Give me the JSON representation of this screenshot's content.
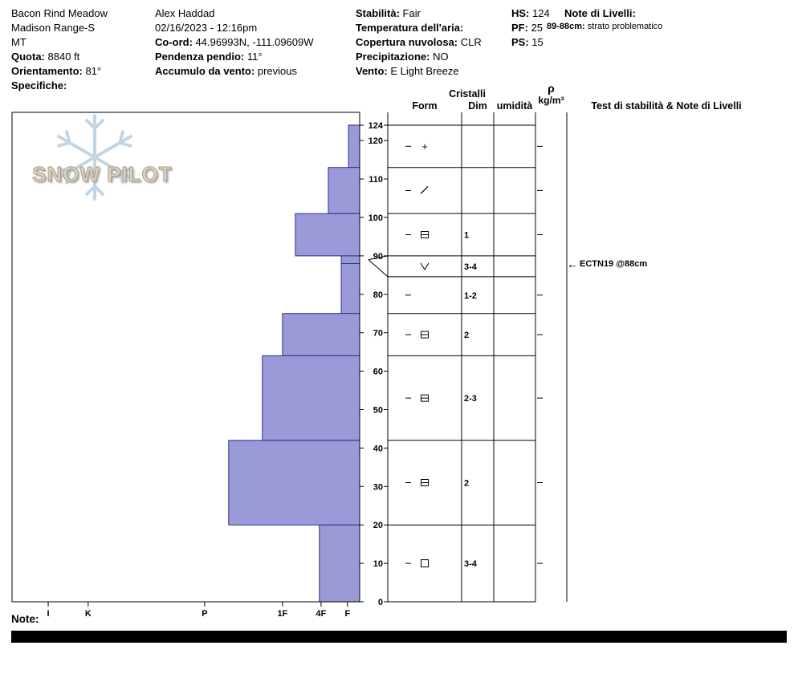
{
  "title": "SnowPilot snow profile",
  "header": {
    "columns": [
      {
        "name": "location",
        "lines": [
          {
            "b": "",
            "t": "Bacon Rind Meadow"
          },
          {
            "b": "",
            "t": "Madison Range-S"
          },
          {
            "b": "",
            "t": "MT"
          },
          {
            "b": "Quota:",
            "t": " 8840 ft"
          },
          {
            "b": "Orientamento:",
            "t": " 81°"
          },
          {
            "b": "Specifiche:",
            "t": ""
          }
        ]
      },
      {
        "name": "observer",
        "lines": [
          {
            "b": "",
            "t": "Alex Haddad"
          },
          {
            "b": "",
            "t": "02/16/2023 - 12:16pm"
          },
          {
            "b": "Co-ord:",
            "t": " 44.96993N, -111.09609W"
          },
          {
            "b": "Pendenza pendio:",
            "t": " 11°"
          },
          {
            "b": "Accumulo da vento:",
            "t": " previous"
          }
        ]
      },
      {
        "name": "conditions",
        "lines": [
          {
            "b": "Stabilità:",
            "t": " Fair"
          },
          {
            "b": "Temperatura dell'aria:",
            "t": ""
          },
          {
            "b": "Copertura nuvolosa:",
            "t": " CLR"
          },
          {
            "b": "Precipitazione:",
            "t": " NO"
          },
          {
            "b": "Vento:",
            "t": " E Light Breeze"
          }
        ]
      },
      {
        "name": "totals",
        "lines": [
          {
            "b": "HS:",
            "t": " 124"
          },
          {
            "b": "PF:",
            "t": " 25"
          },
          {
            "b": "PS:",
            "t": " 15"
          }
        ]
      }
    ],
    "notes_title": "Note di Livelli:",
    "note_line": {
      "b": "89-88cm:",
      "t": " strato problematico"
    }
  },
  "logo": {
    "text": "SNOW PILOT"
  },
  "table": {
    "group_header": "Cristalli",
    "columns": {
      "form": "Form",
      "dim": "Dim",
      "humidity": "umidità",
      "rho": "ρ",
      "rho_units": "kg/m³",
      "tests": "Test di stabilità & Note di Livelli"
    }
  },
  "stability_annotation": {
    "arrow": "←",
    "text": "ECTN19 @88cm"
  },
  "footer": {
    "note_label": "Note:"
  },
  "chart_data": {
    "type": "snow-profile",
    "total_depth_hs_cm": 124,
    "depth_ticks": [
      0,
      10,
      20,
      30,
      40,
      50,
      60,
      70,
      80,
      90,
      100,
      110,
      120,
      124
    ],
    "hardness_axis": {
      "labels": [
        "I",
        "K",
        "P",
        "1F",
        "4F",
        "F"
      ],
      "fractions": [
        0.104,
        0.219,
        0.554,
        0.778,
        0.889,
        0.965
      ]
    },
    "bar_fill": "#9a9ad8",
    "bar_stroke": "#2e2e8e",
    "layers": [
      {
        "top_cm": 124,
        "bottom_cm": 113,
        "hardness": "F",
        "hardness_frac": 0.968,
        "grain_form": "precipitation-particles",
        "symbol": "plus",
        "grain_size_mm": ""
      },
      {
        "top_cm": 113,
        "bottom_cm": 101,
        "hardness": "F+",
        "hardness_frac": 0.91,
        "grain_form": "decomposing-fragments",
        "symbol": "slash",
        "grain_size_mm": ""
      },
      {
        "top_cm": 101,
        "bottom_cm": 90,
        "hardness": "1F-",
        "hardness_frac": 0.815,
        "grain_form": "rounding-facets",
        "symbol": "square-bar",
        "grain_size_mm": "1"
      },
      {
        "top_cm": 90,
        "bottom_cm": 88,
        "hardness": "F",
        "hardness_frac": 0.947,
        "grain_form": "surface-hoar",
        "symbol": "vee",
        "grain_size_mm": "3-4"
      },
      {
        "top_cm": 88,
        "bottom_cm": 75,
        "hardness": "F",
        "hardness_frac": 0.947,
        "grain_form": "",
        "symbol": "none",
        "grain_size_mm": "1-2"
      },
      {
        "top_cm": 75,
        "bottom_cm": 64,
        "hardness": "1F",
        "hardness_frac": 0.778,
        "grain_form": "rounding-facets",
        "symbol": "square-bar",
        "grain_size_mm": "2"
      },
      {
        "top_cm": 64,
        "bottom_cm": 42,
        "hardness": "1F+",
        "hardness_frac": 0.72,
        "grain_form": "rounding-facets",
        "symbol": "square-bar",
        "grain_size_mm": "2-3"
      },
      {
        "top_cm": 42,
        "bottom_cm": 20,
        "hardness": "P",
        "hardness_frac": 0.623,
        "grain_form": "rounding-facets",
        "symbol": "square-bar",
        "grain_size_mm": "2"
      },
      {
        "top_cm": 20,
        "bottom_cm": 0,
        "hardness": "4F",
        "hardness_frac": 0.884,
        "grain_form": "facets",
        "symbol": "square",
        "grain_size_mm": "3-4"
      }
    ],
    "stability_tests": [
      {
        "result": "ECTN19",
        "depth_cm": 88,
        "label": "ECTN19 @88cm"
      }
    ]
  }
}
